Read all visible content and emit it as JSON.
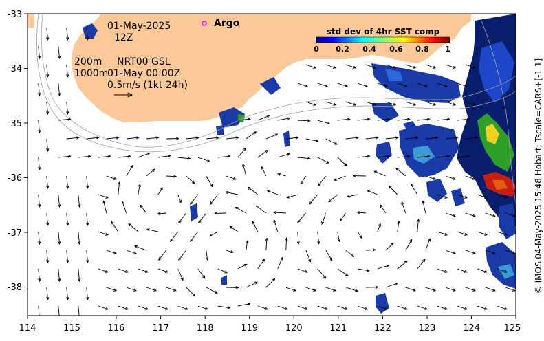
{
  "annotations": {
    "date": "01-May-2025",
    "time": "12Z",
    "isobath_label_200": "200m",
    "product": "NRT00 GSL",
    "isobath_label_1000": "1000m",
    "valid_time": "01-May 00:00Z",
    "scale_text": "0.5m/s (1kt 24h)",
    "argo_label": "Argo"
  },
  "colorbar": {
    "title": "std dev of 4hr SST comp",
    "ticks": [
      "0",
      "0.2",
      "0.4",
      "0.6",
      "0.8",
      "1"
    ]
  },
  "axes": {
    "x_ticks": [
      "114",
      "115",
      "116",
      "117",
      "118",
      "119",
      "120",
      "121",
      "122",
      "123",
      "124",
      "125"
    ],
    "y_ticks": [
      "-33",
      "-34",
      "-35",
      "-36",
      "-37",
      "-38"
    ]
  },
  "credit": "© IMOS 04-May-2025 15:48 Hobart; Tscale=CARS+[-1 1]",
  "colors": {
    "land": "#fcc898",
    "arrow": "#000000",
    "argo_marker": "#ff00ff"
  }
}
